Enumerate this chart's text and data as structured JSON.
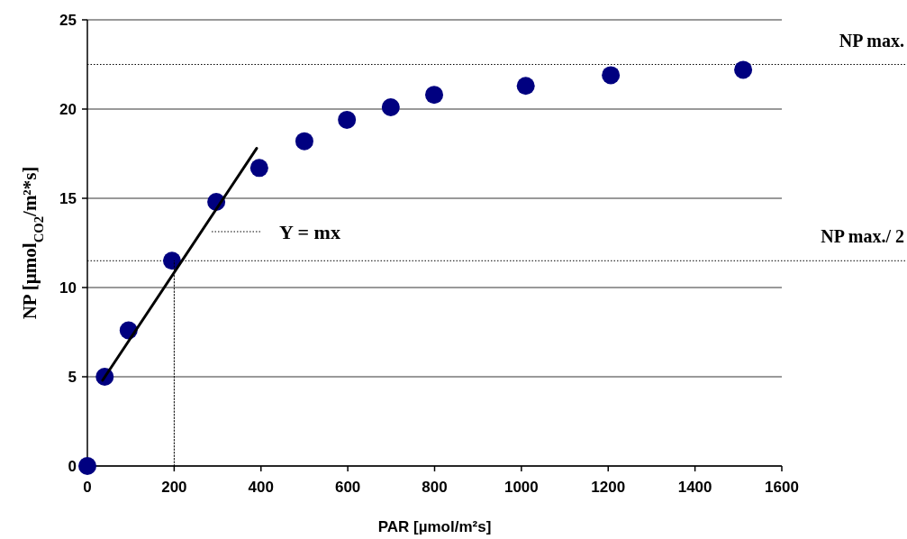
{
  "chart_data": {
    "type": "scatter",
    "xlabel": "PAR [µmol/m²s]",
    "ylabel": "NP [µmol$_{CO2}$/m²*s]",
    "xlim": [
      0,
      1600
    ],
    "xticks": [
      0,
      200,
      400,
      600,
      800,
      1000,
      1200,
      1400,
      1600
    ],
    "ylim": [
      0,
      25
    ],
    "yticks": [
      0,
      5,
      10,
      15,
      20,
      25
    ],
    "grid": "y",
    "marker": "circle",
    "series": [
      {
        "color": "#000080",
        "x": [
          0,
          40,
          95,
          195,
          297,
          396,
          500,
          598,
          699,
          799,
          1010,
          1206,
          1511
        ],
        "values": [
          0,
          5.0,
          7.6,
          11.5,
          14.8,
          16.7,
          18.2,
          19.4,
          20.1,
          20.8,
          21.3,
          21.9,
          22.2
        ]
      },
      {
        "type": "line",
        "color": "#000000",
        "line_style": "solid",
        "marker": "none",
        "x": [
          35,
          390
        ],
        "values": [
          4.8,
          17.8
        ]
      },
      {
        "type": "line",
        "color": "#000000",
        "line_style": "dotted",
        "marker": "none",
        "x": [
          200,
          200
        ],
        "values": [
          0,
          11.5
        ]
      }
    ],
    "ref_lines": [
      {
        "axis": "y",
        "value": 22.5,
        "label": "NP max.",
        "color": "#000000",
        "line_style": "dotted"
      },
      {
        "axis": "y",
        "value": 11.5,
        "label": "NP max./ 2",
        "color": "#000000",
        "line_style": "dotted"
      }
    ],
    "annotations": [
      "Y = mx"
    ]
  }
}
